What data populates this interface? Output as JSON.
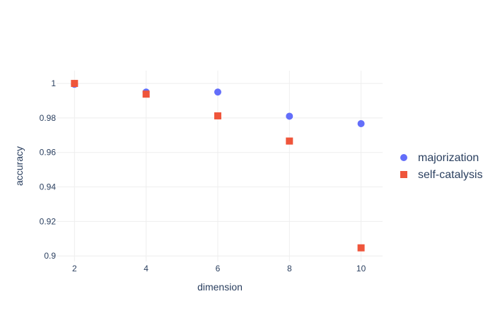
{
  "chart_data": {
    "type": "scatter",
    "x": [
      2,
      4,
      6,
      8,
      10
    ],
    "xlabel": "dimension",
    "ylabel": "accuracy",
    "xlim": [
      1.5,
      10.6
    ],
    "ylim": [
      0.8968,
      1.0074
    ],
    "xticks": [
      2,
      4,
      6,
      8,
      10
    ],
    "yticks": [
      0.9,
      0.92,
      0.94,
      0.96,
      0.98,
      1
    ],
    "xtick_labels": [
      "2",
      "4",
      "6",
      "8",
      "10"
    ],
    "ytick_labels": [
      "0.9",
      "0.92",
      "0.94",
      "0.96",
      "0.98",
      "1"
    ],
    "grid": true,
    "legend_position": "right",
    "series": [
      {
        "name": "majorization",
        "marker": "circle",
        "color": "#636efa",
        "values": [
          0.9995,
          0.995,
          0.995,
          0.981,
          0.9767
        ]
      },
      {
        "name": "self-catalysis",
        "marker": "square",
        "color": "#ef553b",
        "values": [
          1.0,
          0.9938,
          0.9812,
          0.9666,
          0.9047
        ]
      }
    ]
  }
}
